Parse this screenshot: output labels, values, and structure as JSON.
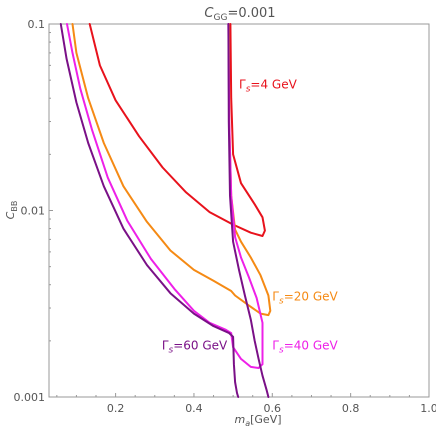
{
  "chart_data": {
    "type": "line",
    "title_main": "C",
    "title_sub": "GG",
    "title_value": "=0.001",
    "xlabel_main": "m",
    "xlabel_sub": "a",
    "xlabel_unit": "[GeV]",
    "ylabel_main": "C",
    "ylabel_sub": "BB",
    "xlim": [
      0.03,
      1.0
    ],
    "ylim": [
      0.001,
      0.1
    ],
    "yscale": "log",
    "grid": false,
    "x_ticks": [
      0.2,
      0.4,
      0.6,
      0.8,
      1.0
    ],
    "x_tick_labels": [
      "0.2",
      "0.4",
      "0.6",
      "0.8",
      "1.0"
    ],
    "y_ticks": [
      0.001,
      0.01,
      0.1
    ],
    "y_tick_labels": [
      "0.001",
      "0.01",
      "0.1"
    ],
    "series": [
      {
        "name": "Γs=4 GeV",
        "label_gamma": "Γ",
        "label_sub": "s",
        "label_rest": "=4 GeV",
        "label_at": [
          0.515,
          0.045
        ],
        "label_anchor": "start",
        "color": "#e8121c",
        "points": [
          [
            0.134,
            0.1
          ],
          [
            0.16,
            0.06
          ],
          [
            0.2,
            0.039
          ],
          [
            0.26,
            0.025
          ],
          [
            0.32,
            0.017
          ],
          [
            0.38,
            0.0125
          ],
          [
            0.44,
            0.0098
          ],
          [
            0.5,
            0.0084
          ],
          [
            0.545,
            0.0076
          ],
          [
            0.575,
            0.0073
          ],
          [
            0.581,
            0.0078
          ],
          [
            0.575,
            0.0092
          ],
          [
            0.555,
            0.0108
          ],
          [
            0.52,
            0.014
          ],
          [
            0.5,
            0.02
          ],
          [
            0.495,
            0.04
          ],
          [
            0.493,
            0.1
          ]
        ]
      },
      {
        "name": "Γs=20 GeV",
        "label_gamma": "Γ",
        "label_sub": "s",
        "label_rest": "=20 GeV",
        "label_at": [
          0.6,
          0.0033
        ],
        "label_anchor": "start",
        "color": "#f58a14",
        "points": [
          [
            0.09,
            0.1
          ],
          [
            0.1,
            0.07
          ],
          [
            0.13,
            0.04
          ],
          [
            0.17,
            0.023
          ],
          [
            0.22,
            0.0135
          ],
          [
            0.28,
            0.0087
          ],
          [
            0.34,
            0.0061
          ],
          [
            0.4,
            0.0048
          ],
          [
            0.45,
            0.0042
          ],
          [
            0.495,
            0.0037
          ],
          [
            0.505,
            0.0035
          ],
          [
            0.54,
            0.0031
          ],
          [
            0.57,
            0.0028
          ],
          [
            0.59,
            0.00275
          ],
          [
            0.595,
            0.0029
          ],
          [
            0.59,
            0.0035
          ],
          [
            0.57,
            0.0045
          ],
          [
            0.545,
            0.0056
          ],
          [
            0.52,
            0.0068
          ],
          [
            0.505,
            0.0079
          ],
          [
            0.495,
            0.012
          ],
          [
            0.49,
            0.03
          ],
          [
            0.489,
            0.1
          ]
        ]
      },
      {
        "name": "Γs=40 GeV",
        "label_gamma": "Γ",
        "label_sub": "s",
        "label_rest": "=40 GeV",
        "label_at": [
          0.6,
          0.0018
        ],
        "label_anchor": "start",
        "color": "#ee20e8",
        "points": [
          [
            0.076,
            0.1
          ],
          [
            0.09,
            0.07
          ],
          [
            0.11,
            0.045
          ],
          [
            0.14,
            0.027
          ],
          [
            0.18,
            0.015
          ],
          [
            0.23,
            0.0088
          ],
          [
            0.29,
            0.0055
          ],
          [
            0.35,
            0.0038
          ],
          [
            0.4,
            0.0029
          ],
          [
            0.44,
            0.0025
          ],
          [
            0.48,
            0.0023
          ],
          [
            0.495,
            0.0022
          ],
          [
            0.5,
            0.00185
          ],
          [
            0.52,
            0.0016
          ],
          [
            0.545,
            0.00145
          ],
          [
            0.565,
            0.00143
          ],
          [
            0.575,
            0.0015
          ],
          [
            0.575,
            0.0025
          ],
          [
            0.56,
            0.0034
          ],
          [
            0.54,
            0.0044
          ],
          [
            0.52,
            0.0056
          ],
          [
            0.505,
            0.0072
          ],
          [
            0.495,
            0.012
          ],
          [
            0.49,
            0.03
          ],
          [
            0.488,
            0.1
          ]
        ]
      },
      {
        "name": "Γs=60 GeV",
        "label_gamma": "Γ",
        "label_sub": "s",
        "label_rest": "=60 GeV",
        "label_at": [
          0.485,
          0.0018
        ],
        "label_anchor": "end",
        "color": "#7a1087",
        "points": [
          [
            0.06,
            0.1
          ],
          [
            0.075,
            0.065
          ],
          [
            0.1,
            0.038
          ],
          [
            0.13,
            0.023
          ],
          [
            0.17,
            0.0135
          ],
          [
            0.22,
            0.008
          ],
          [
            0.28,
            0.0051
          ],
          [
            0.34,
            0.0036
          ],
          [
            0.4,
            0.0028
          ],
          [
            0.45,
            0.0024
          ],
          [
            0.49,
            0.0022
          ],
          [
            0.5,
            0.0021
          ],
          [
            0.502,
            0.0015
          ],
          [
            0.505,
            0.0012
          ],
          [
            0.51,
            0.00105
          ],
          [
            0.513,
            0.001
          ]
        ]
      },
      {
        "name": "",
        "label_gamma": "",
        "label_sub": "",
        "label_rest": "",
        "label_at": [
          0.6,
          0.001
        ],
        "label_anchor": "start",
        "color": "#7a1087",
        "points": [
          [
            0.488,
            0.1
          ],
          [
            0.489,
            0.03
          ],
          [
            0.492,
            0.012
          ],
          [
            0.5,
            0.0068
          ],
          [
            0.515,
            0.0048
          ],
          [
            0.53,
            0.0035
          ],
          [
            0.545,
            0.0026
          ],
          [
            0.555,
            0.002
          ],
          [
            0.565,
            0.0016
          ],
          [
            0.575,
            0.0013
          ],
          [
            0.585,
            0.0011
          ],
          [
            0.59,
            0.001
          ]
        ]
      }
    ]
  }
}
